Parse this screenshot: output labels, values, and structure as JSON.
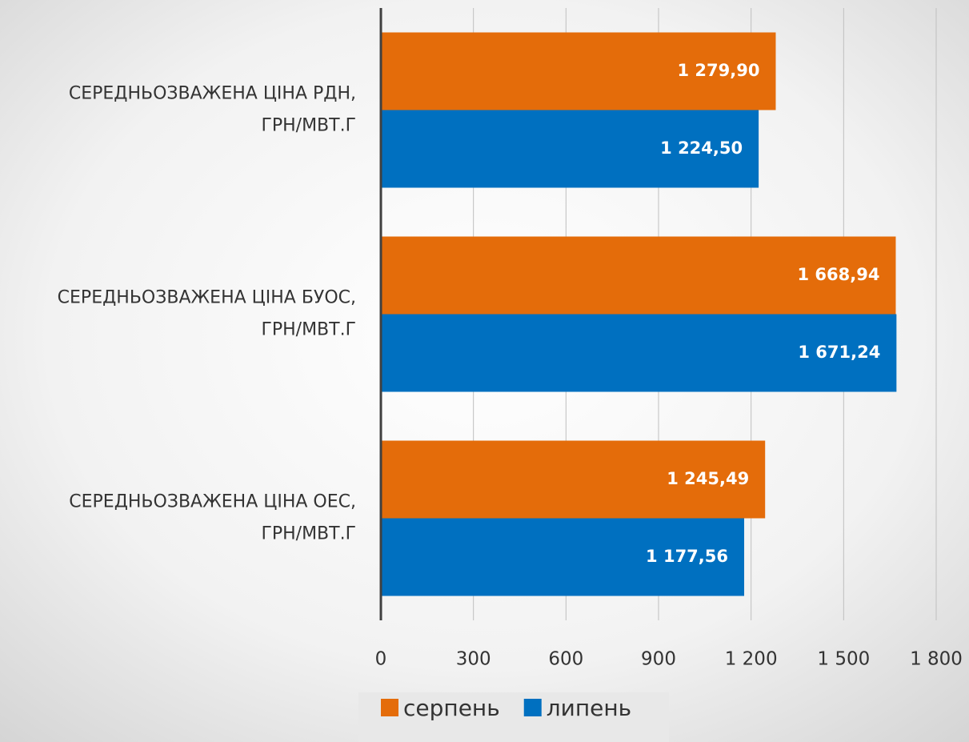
{
  "chart_data": {
    "type": "bar",
    "orientation": "horizontal",
    "categories": [
      "СЕРЕДНЬОЗВАЖЕНА ЦІНА РДН, ГРН/МВТ.Г",
      "СЕРЕДНЬОЗВАЖЕНА ЦІНА БУОС, ГРН/МВТ.Г",
      "СЕРЕДНЬОЗВАЖЕНА ЦІНА ОЕС, ГРН/МВТ.Г"
    ],
    "series": [
      {
        "name": "серпень",
        "color": "#e46c0a",
        "values": [
          1279.9,
          1668.94,
          1245.49
        ],
        "value_labels": [
          "1 279,90",
          "1 668,94",
          "1 245,49"
        ]
      },
      {
        "name": "липень",
        "color": "#0070c0",
        "values": [
          1224.5,
          1671.24,
          1177.56
        ],
        "value_labels": [
          "1 224,50",
          "1 671,24",
          "1 177,56"
        ]
      }
    ],
    "xlim": [
      0,
      1800
    ],
    "xticks": [
      0,
      300,
      600,
      900,
      {
        "value": 1200,
        "label": "1 200"
      },
      {
        "value": 1500,
        "label": "1 500"
      },
      {
        "value": 1800,
        "label": "1 800"
      }
    ],
    "grid": true,
    "legend": "bottom"
  }
}
